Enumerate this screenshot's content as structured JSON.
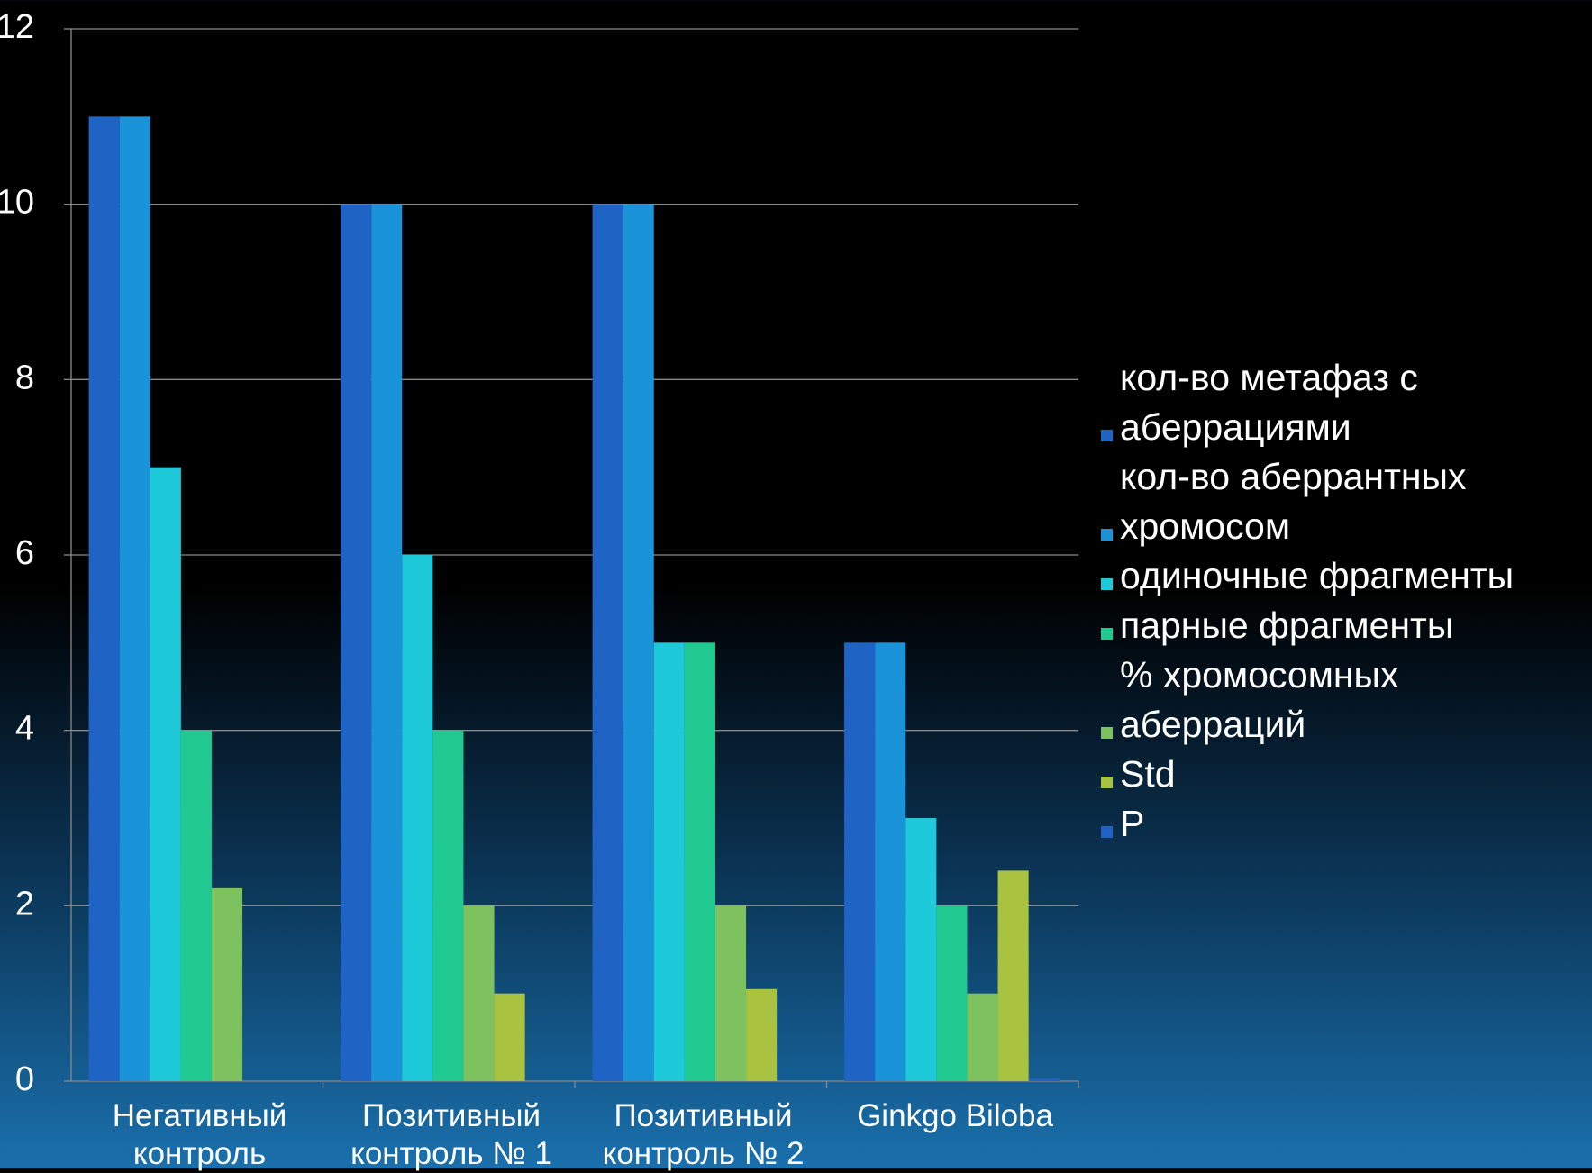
{
  "chart_data": {
    "type": "bar",
    "categories": [
      "Негативный контроль",
      "Позитивный контроль № 1",
      "Позитивный контроль № 2",
      "Ginkgo Biloba"
    ],
    "series": [
      {
        "name": "кол-во метафаз с аберрациями",
        "color": "#1f63c4",
        "values": [
          11,
          10,
          10,
          5
        ]
      },
      {
        "name": "кол-во аберрантных хромосом",
        "color": "#1a93d8",
        "values": [
          11,
          10,
          10,
          5
        ]
      },
      {
        "name": "одиночные фрагменты",
        "color": "#1ecad9",
        "values": [
          7,
          6,
          5,
          3
        ]
      },
      {
        "name": "парные фрагменты",
        "color": "#1fc98f",
        "values": [
          4,
          4,
          5,
          2
        ]
      },
      {
        "name": "% хромосомных аберраций",
        "color": "#7dc25e",
        "values": [
          2.2,
          2,
          2,
          1
        ]
      },
      {
        "name": "Std",
        "color": "#a9c240",
        "values": [
          0,
          1,
          1.05,
          2.4
        ]
      },
      {
        "name": "P",
        "color": "#2062c4",
        "values": [
          0,
          0,
          0,
          0.03
        ]
      }
    ],
    "ylim": [
      0,
      12
    ],
    "yticks": [
      0,
      2,
      4,
      6,
      8,
      10,
      12
    ],
    "grid": true,
    "legend": "right"
  }
}
